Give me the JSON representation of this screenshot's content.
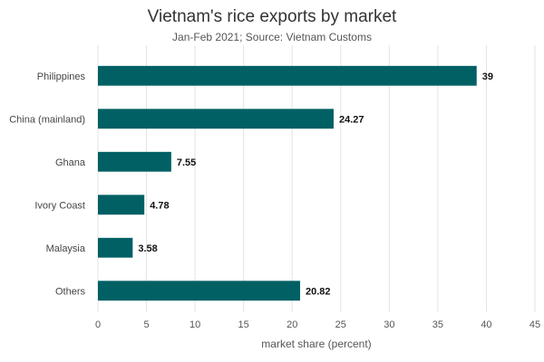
{
  "chart_data": {
    "type": "bar",
    "orientation": "horizontal",
    "title": "Vietnam's rice exports by market",
    "subtitle": "Jan-Feb 2021; Source: Vietnam Customs",
    "xlabel": "market share (percent)",
    "ylabel": "",
    "categories": [
      "Philippines",
      "China (mainland)",
      "Ghana",
      "Ivory Coast",
      "Malaysia",
      "Others"
    ],
    "values": [
      39,
      24.27,
      7.55,
      4.78,
      3.58,
      20.82
    ],
    "data_labels": [
      "39",
      "24.27",
      "7.55",
      "4.78",
      "3.58",
      "20.82"
    ],
    "xlim": [
      0,
      45
    ],
    "xticks": [
      0,
      5,
      10,
      15,
      20,
      25,
      30,
      35,
      40,
      45
    ],
    "grid": "vertical",
    "legend": "none",
    "bar_color": "#006064"
  }
}
